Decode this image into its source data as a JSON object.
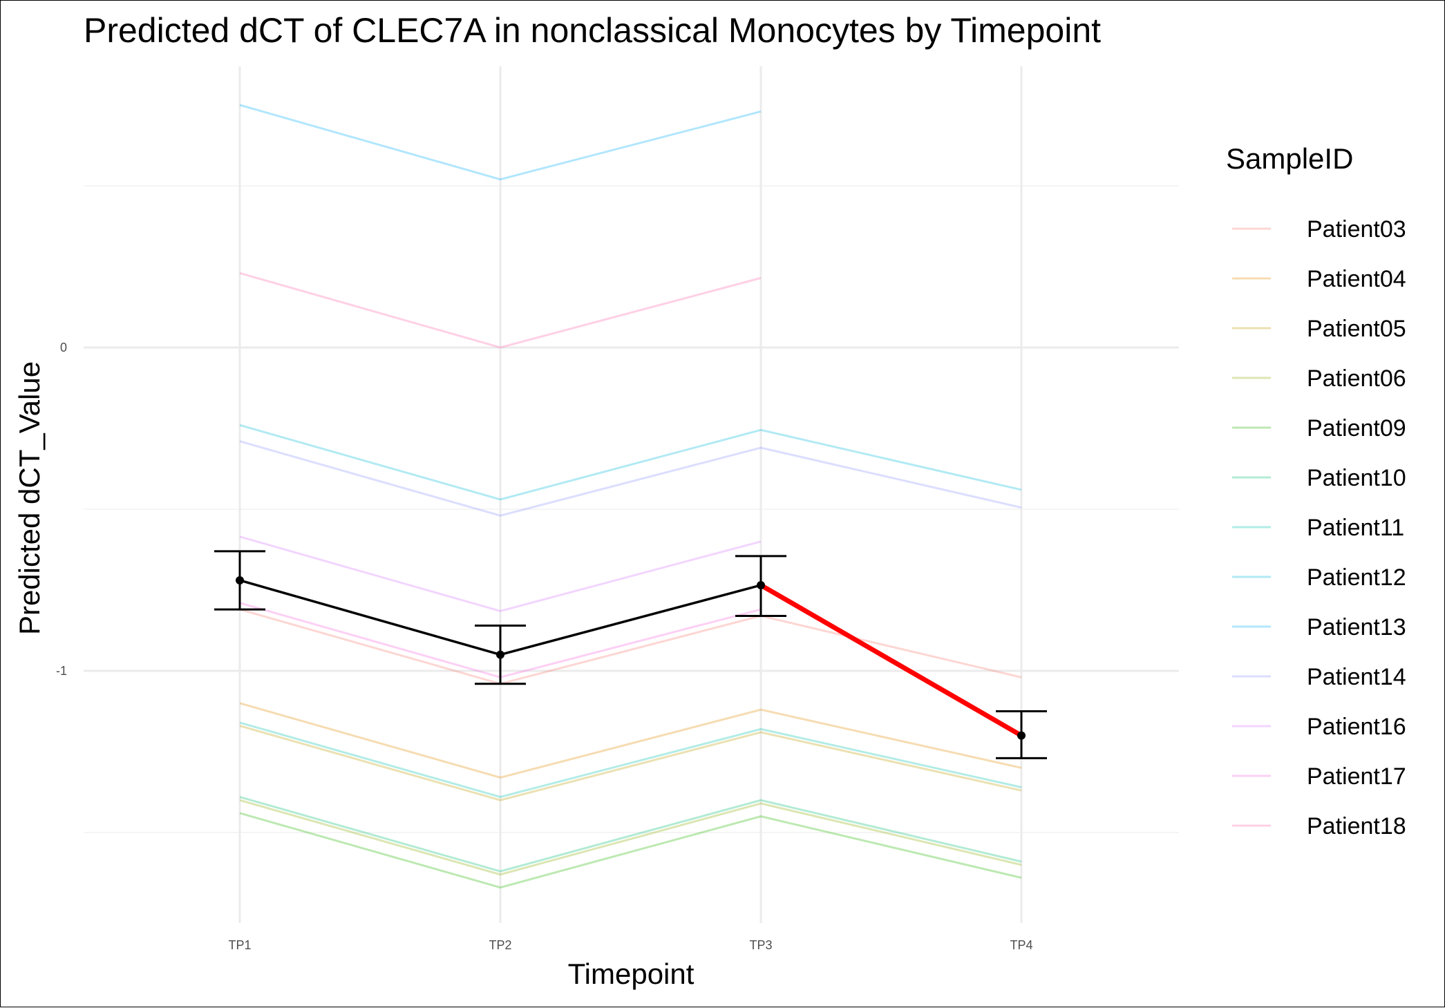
{
  "chart_data": {
    "type": "line",
    "title": "Predicted dCT of  CLEC7A in  nonclassical  Monocytes by Timepoint",
    "xlabel": "Timepoint",
    "ylabel": "Predicted dCT_Value",
    "categories": [
      "TP1",
      "TP2",
      "TP3",
      "TP4"
    ],
    "ylim": [
      -1.75,
      0.9
    ],
    "y_ticks": [
      {
        "value": 0,
        "label": "0"
      },
      {
        "value": -1,
        "label": "-1"
      }
    ],
    "y_minor_gridlines": [
      0.5,
      -0.5,
      -1.5
    ],
    "grid": true,
    "legend": {
      "title": "SampleID",
      "position": "right"
    },
    "series": [
      {
        "name": "Patient03",
        "color": "#F8766D",
        "values": [
          -0.81,
          -1.04,
          -0.83,
          -1.02
        ]
      },
      {
        "name": "Patient04",
        "color": "#E18A00",
        "values": [
          -1.1,
          -1.33,
          -1.12,
          -1.3
        ]
      },
      {
        "name": "Patient05",
        "color": "#BE9C00",
        "values": [
          -1.17,
          -1.4,
          -1.19,
          -1.37
        ]
      },
      {
        "name": "Patient06",
        "color": "#8CAB00",
        "values": [
          -1.4,
          -1.63,
          -1.41,
          -1.6
        ]
      },
      {
        "name": "Patient09",
        "color": "#24B700",
        "values": [
          -1.44,
          -1.67,
          -1.45,
          -1.64
        ]
      },
      {
        "name": "Patient10",
        "color": "#00BE70",
        "values": [
          -1.39,
          -1.62,
          -1.4,
          -1.59
        ]
      },
      {
        "name": "Patient11",
        "color": "#00C1AB",
        "values": [
          -1.16,
          -1.39,
          -1.18,
          -1.36
        ]
      },
      {
        "name": "Patient12",
        "color": "#00BBDA",
        "values": [
          -0.24,
          -0.47,
          -0.255,
          -0.44
        ]
      },
      {
        "name": "Patient13",
        "color": "#00ACFC",
        "values": [
          0.75,
          0.52,
          0.73,
          null
        ]
      },
      {
        "name": "Patient14",
        "color": "#8B93FF",
        "values": [
          -0.29,
          -0.52,
          -0.31,
          -0.495
        ]
      },
      {
        "name": "Patient16",
        "color": "#D575FE",
        "values": [
          -0.585,
          -0.815,
          -0.6,
          null
        ]
      },
      {
        "name": "Patient17",
        "color": "#F962DD",
        "values": [
          -0.79,
          -1.02,
          -0.81,
          null
        ]
      },
      {
        "name": "Patient18",
        "color": "#FF65AC",
        "values": [
          0.23,
          0.0,
          0.215,
          null
        ]
      }
    ],
    "mean_line": {
      "color": "#000000",
      "values": [
        -0.72,
        -0.95,
        -0.735,
        -1.2
      ],
      "error_low": [
        -0.81,
        -1.04,
        -0.83,
        -1.27
      ],
      "error_high": [
        -0.63,
        -0.86,
        -0.645,
        -1.125
      ]
    },
    "trend_line": {
      "color": "#FF0000",
      "values": [
        -0.72,
        null,
        -0.735,
        -1.2
      ]
    }
  }
}
